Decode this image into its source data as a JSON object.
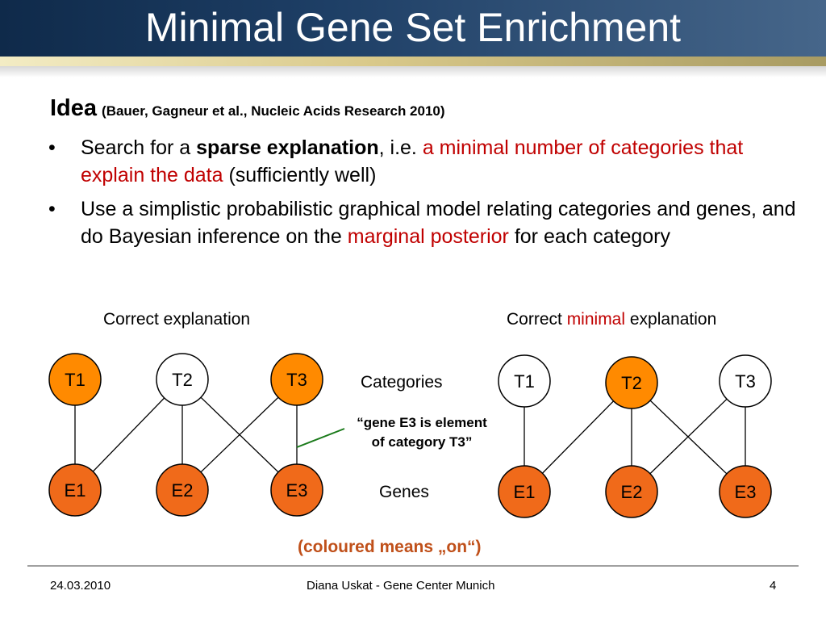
{
  "title": "Minimal Gene Set Enrichment",
  "idea": {
    "label": "Idea",
    "citation": "(Bauer, Gagneur et al., Nucleic Acids Research 2010)"
  },
  "bullets": [
    {
      "dot": "•",
      "part1": "Search for a ",
      "bold": "sparse explanation",
      "part2": ", i.e. ",
      "red": "a minimal number of categories that explain the data",
      "part3": " (sufficiently well)"
    },
    {
      "dot": "•",
      "part1": "Use a simplistic probabilistic graphical model relating categories and genes, and do Bayesian inference on the ",
      "red": "marginal posterior",
      "part2": " for each category"
    }
  ],
  "left_heading": "Correct explanation",
  "right_heading": {
    "part1": "Correct ",
    "red": "minimal",
    "part2": " explanation"
  },
  "row_labels": {
    "categories": "Categories",
    "genes": "Genes"
  },
  "annotation": {
    "line1": "“gene E3 is element",
    "line2": "of category T3”"
  },
  "note": "(coloured means „on“)",
  "colors": {
    "on_fill": "#ff8a00",
    "gene_fill": "#f06a1a",
    "off_fill": "#ffffff",
    "red_text": "#c00000",
    "annotation_line": "#1a7a1a"
  },
  "left_graph": {
    "categories": [
      {
        "label": "T1",
        "on": true
      },
      {
        "label": "T2",
        "on": false
      },
      {
        "label": "T3",
        "on": true
      }
    ],
    "genes": [
      {
        "label": "E1",
        "on": true
      },
      {
        "label": "E2",
        "on": true
      },
      {
        "label": "E3",
        "on": true
      }
    ]
  },
  "right_graph": {
    "categories": [
      {
        "label": "T1",
        "on": false
      },
      {
        "label": "T2",
        "on": true
      },
      {
        "label": "T3",
        "on": false
      }
    ],
    "genes": [
      {
        "label": "E1",
        "on": true
      },
      {
        "label": "E2",
        "on": true
      },
      {
        "label": "E3",
        "on": true
      }
    ]
  },
  "footer": {
    "date": "24.03.2010",
    "author": "Diana Uskat - Gene Center Munich",
    "page": "4"
  }
}
